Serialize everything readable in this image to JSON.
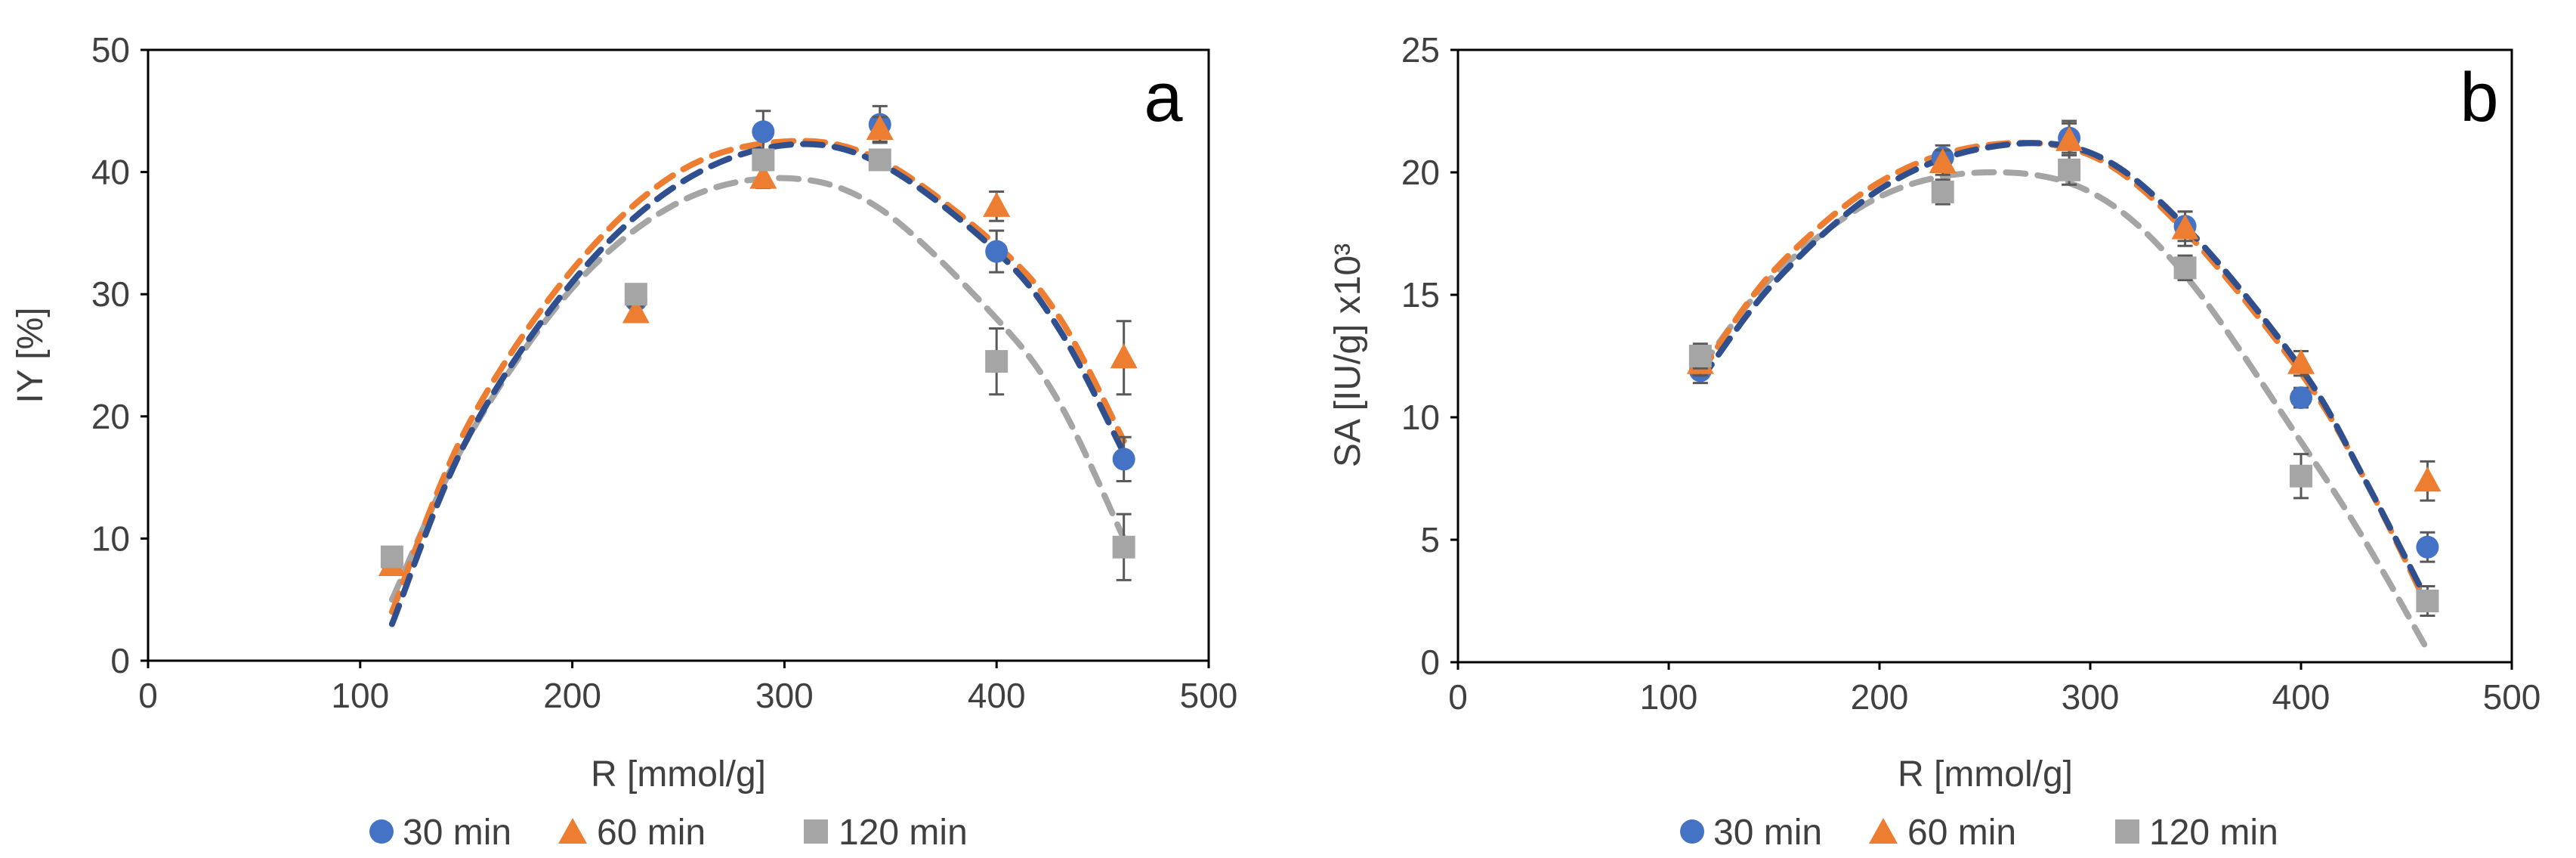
{
  "chart_data": [
    {
      "type": "scatter",
      "panel_label": "a",
      "xlabel": "R [mmol/g]",
      "ylabel": "IY [%]",
      "xlim": [
        0,
        500
      ],
      "ylim": [
        0,
        50
      ],
      "xticks": [
        0,
        100,
        200,
        300,
        400,
        500
      ],
      "yticks": [
        0,
        10,
        20,
        30,
        40,
        50
      ],
      "x": [
        115,
        230,
        290,
        345,
        400,
        460
      ],
      "series": [
        {
          "name": "30 min",
          "marker": "circle",
          "color": "#4472C4",
          "values": [
            8.0,
            29.5,
            43.3,
            43.9,
            33.5,
            16.5
          ],
          "errors": [
            0.5,
            0.5,
            1.7,
            1.5,
            1.7,
            1.8
          ],
          "fit": {
            "color": "#2F4F8F",
            "points": [
              [
                115,
                3
              ],
              [
                150,
                18
              ],
              [
                200,
                31
              ],
              [
                250,
                39
              ],
              [
                300,
                42.2
              ],
              [
                345,
                40.7
              ],
              [
                400,
                33.5
              ],
              [
                430,
                27
              ],
              [
                460,
                17
              ]
            ]
          }
        },
        {
          "name": "60 min",
          "marker": "triangle",
          "color": "#ED7D31",
          "values": [
            7.8,
            28.5,
            39.5,
            43.5,
            37.2,
            24.8
          ],
          "errors": [
            0.5,
            0.5,
            0.8,
            1.0,
            1.2,
            3.0
          ],
          "fit": {
            "color": "#ED7D31",
            "points": [
              [
                115,
                4
              ],
              [
                150,
                19
              ],
              [
                200,
                32
              ],
              [
                250,
                40
              ],
              [
                300,
                42.5
              ],
              [
                345,
                41
              ],
              [
                400,
                34
              ],
              [
                430,
                28
              ],
              [
                460,
                18
              ]
            ]
          }
        },
        {
          "name": "120 min",
          "marker": "square",
          "color": "#A5A5A5",
          "values": [
            8.5,
            30.0,
            41.0,
            41.0,
            24.5,
            9.3
          ],
          "errors": [
            0.5,
            0.5,
            0.8,
            0.8,
            2.7,
            2.7
          ],
          "fit": {
            "color": "#A5A5A5",
            "points": [
              [
                115,
                5
              ],
              [
                150,
                18
              ],
              [
                200,
                30.5
              ],
              [
                250,
                37.5
              ],
              [
                300,
                39.5
              ],
              [
                345,
                37
              ],
              [
                400,
                28
              ],
              [
                430,
                21
              ],
              [
                460,
                10
              ]
            ]
          }
        }
      ],
      "legend": [
        "30 min",
        "60 min",
        "120 min"
      ]
    },
    {
      "type": "scatter",
      "panel_label": "b",
      "xlabel": "R [mmol/g]",
      "ylabel": "SA [IU/g] x10³",
      "xlim": [
        0,
        500
      ],
      "ylim": [
        0,
        25
      ],
      "xticks": [
        0,
        100,
        200,
        300,
        400,
        500
      ],
      "yticks": [
        0,
        5,
        10,
        15,
        20,
        25
      ],
      "x": [
        115,
        230,
        290,
        345,
        400,
        460
      ],
      "series": [
        {
          "name": "30 min",
          "marker": "circle",
          "color": "#4472C4",
          "values": [
            11.9,
            20.6,
            21.4,
            17.8,
            10.8,
            4.7
          ],
          "errors": [
            0.5,
            0.5,
            0.6,
            0.6,
            0.4,
            0.6
          ],
          "fit": {
            "color": "#2F4F8F",
            "points": [
              [
                115,
                11.5
              ],
              [
                150,
                15.5
              ],
              [
                200,
                19.3
              ],
              [
                250,
                21
              ],
              [
                300,
                20.8
              ],
              [
                345,
                17.8
              ],
              [
                400,
                12
              ],
              [
                430,
                7.5
              ],
              [
                460,
                2.5
              ]
            ]
          }
        },
        {
          "name": "60 min",
          "marker": "triangle",
          "color": "#ED7D31",
          "values": [
            12.2,
            20.4,
            21.3,
            17.7,
            12.2,
            7.4
          ],
          "errors": [
            0.5,
            0.5,
            0.8,
            0.7,
            0.5,
            0.8
          ],
          "fit": {
            "color": "#ED7D31",
            "points": [
              [
                115,
                11.8
              ],
              [
                150,
                16
              ],
              [
                200,
                19.6
              ],
              [
                250,
                21.1
              ],
              [
                300,
                20.7
              ],
              [
                345,
                17.6
              ],
              [
                400,
                11.8
              ],
              [
                430,
                7.5
              ],
              [
                460,
                2.3
              ]
            ]
          }
        },
        {
          "name": "120 min",
          "marker": "square",
          "color": "#A5A5A5",
          "values": [
            12.5,
            19.2,
            20.1,
            16.1,
            7.6,
            2.5
          ],
          "errors": [
            0.5,
            0.5,
            0.6,
            0.5,
            0.9,
            0.6
          ],
          "fit": {
            "color": "#A5A5A5",
            "points": [
              [
                115,
                12
              ],
              [
                150,
                15.8
              ],
              [
                200,
                19
              ],
              [
                250,
                20
              ],
              [
                300,
                19.2
              ],
              [
                345,
                15.8
              ],
              [
                400,
                9
              ],
              [
                430,
                5
              ],
              [
                460,
                0.5
              ]
            ]
          }
        }
      ],
      "legend": [
        "30 min",
        "60 min",
        "120 min"
      ]
    }
  ]
}
